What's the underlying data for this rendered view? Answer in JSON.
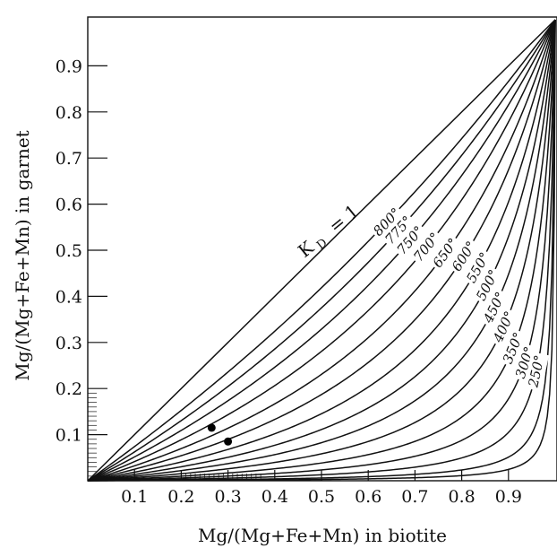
{
  "chart_data": {
    "type": "line",
    "title": "",
    "xlabel": "Mg/(Mg+Fe+Mn) in biotite",
    "ylabel": "Mg/(Mg+Fe+Mn) in garnet",
    "xlim": [
      0,
      1
    ],
    "ylim": [
      0,
      1
    ],
    "x_ticks": [
      "0.1",
      "0.2",
      "0.3",
      "0.4",
      "0.5",
      "0.6",
      "0.7",
      "0.8",
      "0.9"
    ],
    "y_ticks": [
      "0.1",
      "0.2",
      "0.3",
      "0.4",
      "0.5",
      "0.6",
      "0.7",
      "0.8",
      "0.9"
    ],
    "kd_label": "K",
    "kd_subscript": "D",
    "kd_value": "= 1",
    "series": [
      {
        "name": "800°",
        "kd": 0.72
      },
      {
        "name": "775°",
        "kd": 0.6
      },
      {
        "name": "750°",
        "kd": 0.49
      },
      {
        "name": "700°",
        "kd": 0.39
      },
      {
        "name": "650°",
        "kd": 0.3
      },
      {
        "name": "600°",
        "kd": 0.23
      },
      {
        "name": "550°",
        "kd": 0.17
      },
      {
        "name": "500°",
        "kd": 0.125
      },
      {
        "name": "450°",
        "kd": 0.09
      },
      {
        "name": "400°",
        "kd": 0.062
      },
      {
        "name": "350°",
        "kd": 0.04
      },
      {
        "name": "300°",
        "kd": 0.024
      },
      {
        "name": "250°",
        "kd": 0.013
      },
      {
        "name": "",
        "kd": 0.006
      },
      {
        "name": "",
        "kd": 0.0028
      }
    ],
    "points": [
      {
        "x": 0.265,
        "y": 0.115
      },
      {
        "x": 0.3,
        "y": 0.085
      }
    ]
  }
}
